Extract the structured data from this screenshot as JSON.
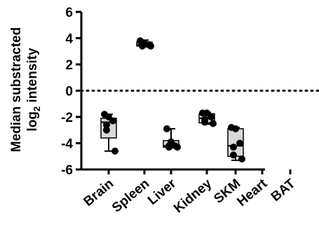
{
  "chart_data": {
    "type": "box",
    "ylabel_line1": "Median substracted",
    "ylabel_line2_prefix": "log",
    "ylabel_line2_sub": "2",
    "ylabel_line2_suffix": " intensity",
    "ylim": [
      -6,
      6
    ],
    "yticks": [
      6,
      4,
      2,
      0,
      -2,
      -4,
      -6
    ],
    "reference_line": 0,
    "categories": [
      "Brain",
      "Spleen",
      "Liver",
      "Kidney",
      "SKM",
      "Heart",
      "BAT"
    ],
    "groups": [
      {
        "name": "Brain",
        "points": [
          -1.8,
          -2.0,
          -2.3,
          -2.6,
          -3.0,
          -4.6
        ],
        "min": -4.6,
        "q1": -3.6,
        "median": -2.4,
        "q3": -2.1,
        "max": -1.8
      },
      {
        "name": "Spleen",
        "points": [
          3.8,
          3.6,
          3.5,
          3.5,
          3.4,
          3.4
        ],
        "min": 3.35,
        "q1": 3.4,
        "median": 3.5,
        "q3": 3.7,
        "max": 3.85
      },
      {
        "name": "Liver",
        "points": [
          -2.9,
          -3.9,
          -4.2,
          -4.2,
          -4.3,
          -4.3
        ],
        "min": -4.35,
        "q1": -4.3,
        "median": -4.2,
        "q3": -3.8,
        "max": -2.9
      },
      {
        "name": "Kidney",
        "points": [
          -1.7,
          -1.7,
          -2.0,
          -2.2,
          -2.4,
          -2.5
        ],
        "min": -2.55,
        "q1": -2.45,
        "median": -2.1,
        "q3": -1.75,
        "max": -1.65
      },
      {
        "name": "SKM",
        "points": [
          -2.8,
          -2.9,
          -4.0,
          -4.3,
          -4.9,
          -5.2
        ],
        "min": -5.3,
        "q1": -5.0,
        "median": -4.2,
        "q3": -2.9,
        "max": -2.8
      },
      {
        "name": "Heart",
        "points": []
      },
      {
        "name": "BAT",
        "points": []
      }
    ],
    "box_fill": "#d9d9d9",
    "point_color": "#000000",
    "grid": false
  }
}
